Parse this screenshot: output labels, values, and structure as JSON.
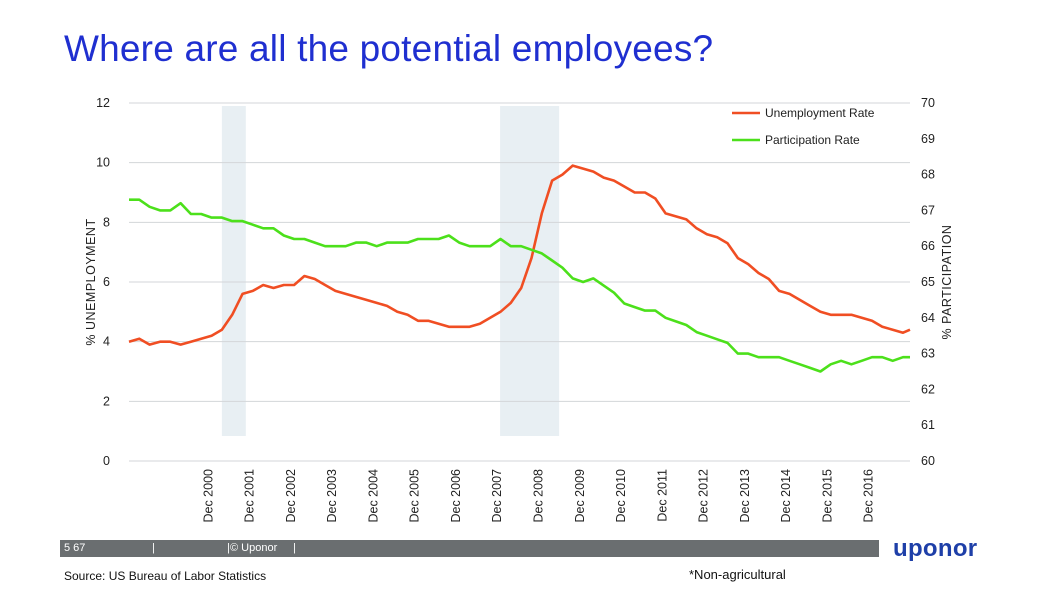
{
  "slide": {
    "title": "Where are all the potential employees?",
    "footer": {
      "page": "5 67",
      "separator": "|",
      "copyright": "© Uponor"
    },
    "brand": "uponor",
    "source": "Source:  US Bureau of Labor Statistics",
    "note": "*Non-agricultural"
  },
  "colors": {
    "unemployment": "#f04e23",
    "participation": "#4ce01b",
    "recession_band": "#e8eff3",
    "grid": "#d3d6d8",
    "title": "#1f2fd0",
    "brand": "#1e3fa8",
    "footer_bar": "#6a6e70"
  },
  "chart_data": {
    "type": "line",
    "ylabel": "% UNEMPLOYMENT",
    "y2label": "% PARTICIPATION",
    "ylim": [
      0,
      12
    ],
    "y2lim": [
      60,
      70
    ],
    "yticks": [
      "0",
      "2",
      "4",
      "6",
      "8",
      "10",
      "12"
    ],
    "y2ticks": [
      "60",
      "61",
      "62",
      "63",
      "64",
      "65",
      "66",
      "67",
      "68",
      "69",
      "70"
    ],
    "xlim": [
      1999.0,
      2017.92
    ],
    "xticks": [
      "Dec 2000",
      "Dec 2001",
      "Dec 2002",
      "Dec 2003",
      "Dec 2004",
      "Dec 2005",
      "Dec 2006",
      "Dec 2007",
      "Dec 2008",
      "Dec 2009",
      "Dec 2010",
      "Dec 2011",
      "Dec 2012",
      "Dec 2013",
      "Dec 2014",
      "Dec 2015",
      "Dec 2016"
    ],
    "xtick_values": [
      2000.92,
      2001.92,
      2002.92,
      2003.92,
      2004.92,
      2005.92,
      2006.92,
      2007.92,
      2008.92,
      2009.92,
      2010.92,
      2011.92,
      2012.92,
      2013.92,
      2014.92,
      2015.92,
      2016.92
    ],
    "grid": true,
    "legend_position": "top-right",
    "recessions": [
      [
        2001.25,
        2001.83
      ],
      [
        2007.99,
        2009.42
      ]
    ],
    "series": [
      {
        "name": "Unemployment Rate",
        "axis": "left",
        "x": [
          1999.0,
          1999.25,
          1999.5,
          1999.75,
          2000.0,
          2000.25,
          2000.5,
          2000.75,
          2001.0,
          2001.25,
          2001.5,
          2001.75,
          2002.0,
          2002.25,
          2002.5,
          2002.75,
          2003.0,
          2003.25,
          2003.5,
          2003.75,
          2004.0,
          2004.25,
          2004.5,
          2004.75,
          2005.0,
          2005.25,
          2005.5,
          2005.75,
          2006.0,
          2006.25,
          2006.5,
          2006.75,
          2007.0,
          2007.25,
          2007.5,
          2007.75,
          2008.0,
          2008.25,
          2008.5,
          2008.75,
          2009.0,
          2009.25,
          2009.5,
          2009.75,
          2010.0,
          2010.25,
          2010.5,
          2010.75,
          2011.0,
          2011.25,
          2011.5,
          2011.75,
          2012.0,
          2012.25,
          2012.5,
          2012.75,
          2013.0,
          2013.25,
          2013.5,
          2013.75,
          2014.0,
          2014.25,
          2014.5,
          2014.75,
          2015.0,
          2015.25,
          2015.5,
          2015.75,
          2016.0,
          2016.25,
          2016.5,
          2016.75,
          2017.0,
          2017.25,
          2017.5,
          2017.75,
          2017.92
        ],
        "values": [
          4.0,
          4.1,
          3.9,
          4.0,
          4.0,
          3.9,
          4.0,
          4.1,
          4.2,
          4.4,
          4.9,
          5.6,
          5.7,
          5.9,
          5.8,
          5.9,
          5.9,
          6.2,
          6.1,
          5.9,
          5.7,
          5.6,
          5.5,
          5.4,
          5.3,
          5.2,
          5.0,
          4.9,
          4.7,
          4.7,
          4.6,
          4.5,
          4.5,
          4.5,
          4.6,
          4.8,
          5.0,
          5.3,
          5.8,
          6.8,
          8.3,
          9.4,
          9.6,
          9.9,
          9.8,
          9.7,
          9.5,
          9.4,
          9.2,
          9.0,
          9.0,
          8.8,
          8.3,
          8.2,
          8.1,
          7.8,
          7.6,
          7.5,
          7.3,
          6.8,
          6.6,
          6.3,
          6.1,
          5.7,
          5.6,
          5.4,
          5.2,
          5.0,
          4.9,
          4.9,
          4.9,
          4.8,
          4.7,
          4.5,
          4.4,
          4.3,
          4.4
        ]
      },
      {
        "name": "Participation Rate",
        "axis": "right",
        "x": [
          1999.0,
          1999.25,
          1999.5,
          1999.75,
          2000.0,
          2000.25,
          2000.5,
          2000.75,
          2001.0,
          2001.25,
          2001.5,
          2001.75,
          2002.0,
          2002.25,
          2002.5,
          2002.75,
          2003.0,
          2003.25,
          2003.5,
          2003.75,
          2004.0,
          2004.25,
          2004.5,
          2004.75,
          2005.0,
          2005.25,
          2005.5,
          2005.75,
          2006.0,
          2006.25,
          2006.5,
          2006.75,
          2007.0,
          2007.25,
          2007.5,
          2007.75,
          2008.0,
          2008.25,
          2008.5,
          2008.75,
          2009.0,
          2009.25,
          2009.5,
          2009.75,
          2010.0,
          2010.25,
          2010.5,
          2010.75,
          2011.0,
          2011.25,
          2011.5,
          2011.75,
          2012.0,
          2012.25,
          2012.5,
          2012.75,
          2013.0,
          2013.25,
          2013.5,
          2013.75,
          2014.0,
          2014.25,
          2014.5,
          2014.75,
          2015.0,
          2015.25,
          2015.5,
          2015.75,
          2016.0,
          2016.25,
          2016.5,
          2016.75,
          2017.0,
          2017.25,
          2017.5,
          2017.75,
          2017.92
        ],
        "values": [
          67.3,
          67.3,
          67.1,
          67.0,
          67.0,
          67.2,
          66.9,
          66.9,
          66.8,
          66.8,
          66.7,
          66.7,
          66.6,
          66.5,
          66.5,
          66.3,
          66.2,
          66.2,
          66.1,
          66.0,
          66.0,
          66.0,
          66.1,
          66.1,
          66.0,
          66.1,
          66.1,
          66.1,
          66.2,
          66.2,
          66.2,
          66.3,
          66.1,
          66.0,
          66.0,
          66.0,
          66.2,
          66.0,
          66.0,
          65.9,
          65.8,
          65.6,
          65.4,
          65.1,
          65.0,
          65.1,
          64.9,
          64.7,
          64.4,
          64.3,
          64.2,
          64.2,
          64.0,
          63.9,
          63.8,
          63.6,
          63.5,
          63.4,
          63.3,
          63.0,
          63.0,
          62.9,
          62.9,
          62.9,
          62.8,
          62.7,
          62.6,
          62.5,
          62.7,
          62.8,
          62.7,
          62.8,
          62.9,
          62.9,
          62.8,
          62.9,
          62.9
        ]
      }
    ]
  }
}
